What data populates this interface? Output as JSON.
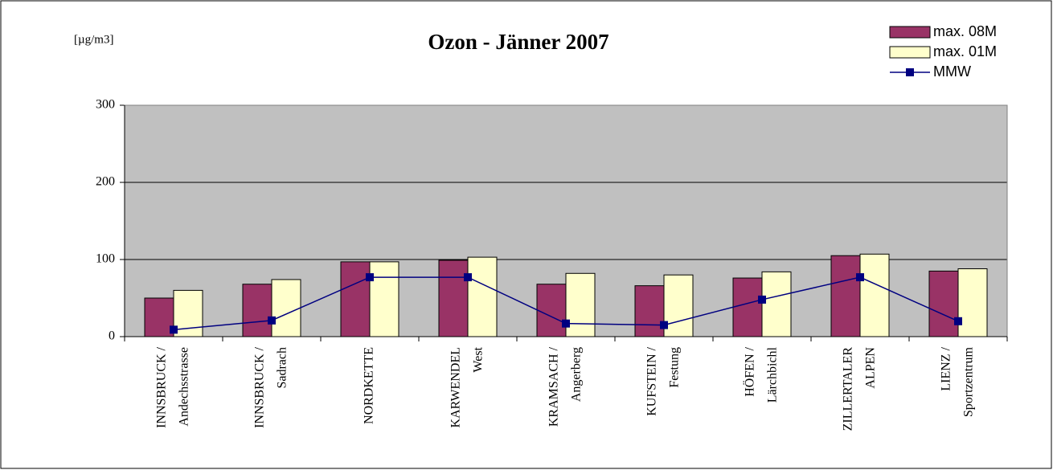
{
  "chart_data": {
    "type": "bar",
    "title": "Ozon - Jänner 2007",
    "y_label": "[µg/m3]",
    "categories": [
      [
        "INNSBRUCK /",
        "Andechsstrasse"
      ],
      [
        "INNSBRUCK /",
        "Sadrach"
      ],
      [
        "NORDKETTE"
      ],
      [
        "KARWENDEL",
        "West"
      ],
      [
        "KRAMSACH /",
        "Angerberg"
      ],
      [
        "KUFSTEIN /",
        "Festung"
      ],
      [
        "HÖFEN /",
        "Lärchbichl"
      ],
      [
        "ZILLERTALER",
        "ALPEN"
      ],
      [
        "LIENZ /",
        "Sportzentrum"
      ]
    ],
    "series": [
      {
        "name": "max. 08M",
        "type": "bar",
        "color": "#993366",
        "values": [
          50,
          68,
          97,
          99,
          68,
          66,
          76,
          105,
          85
        ]
      },
      {
        "name": "max. 01M",
        "type": "bar",
        "color": "#ffffcc",
        "values": [
          60,
          74,
          97,
          103,
          82,
          80,
          84,
          107,
          88
        ]
      },
      {
        "name": "MMW",
        "type": "line",
        "color": "#000080",
        "values": [
          9,
          21,
          77,
          77,
          17,
          15,
          48,
          77,
          20
        ]
      }
    ],
    "ylim": [
      0,
      300
    ],
    "yticks": [
      0,
      100,
      200,
      300
    ],
    "grid": true,
    "legend": "top-right"
  }
}
